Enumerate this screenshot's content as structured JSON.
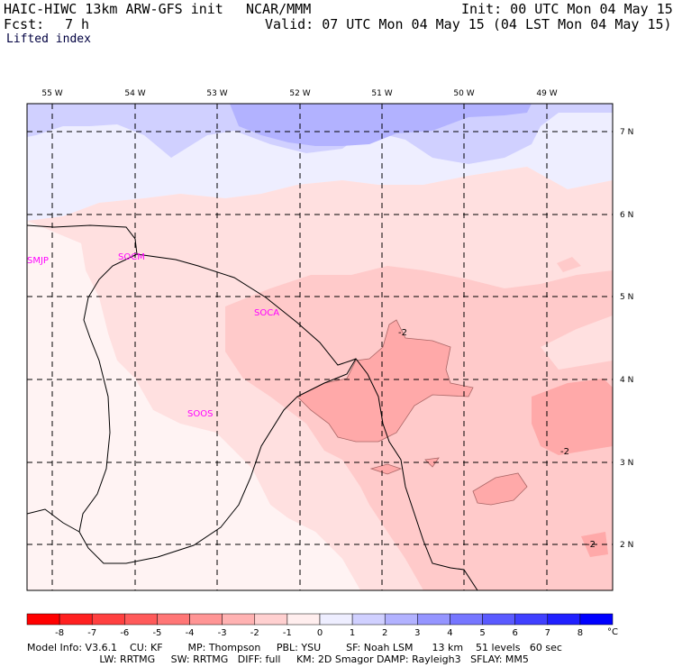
{
  "header": {
    "model_line": "HAIC-HIWC 13km ARW-GFS init",
    "org": "NCAR/MMM",
    "init": "Init: 00 UTC Mon 04 May 15",
    "fcst_label": "Fcst:",
    "fcst_value": "7 h",
    "valid": "Valid: 07 UTC Mon 04 May 15 (04 LST Mon 04 May 15)",
    "field": "Lifted index"
  },
  "map": {
    "lon_labels": [
      "55 W",
      "54 W",
      "53 W",
      "52 W",
      "51 W",
      "50 W",
      "49 W"
    ],
    "lat_labels": [
      "7 N",
      "6 N",
      "5 N",
      "4 N",
      "3 N",
      "2 N"
    ],
    "stations": [
      "SMJP",
      "SOCM",
      "SOCA",
      "SOOS"
    ],
    "contour_labels": [
      "-2",
      "-2",
      "-2"
    ]
  },
  "colorbar": {
    "ticks": [
      "-8",
      "-7",
      "-6",
      "-5",
      "-4",
      "-3",
      "-2",
      "-1",
      "0",
      "1",
      "2",
      "3",
      "4",
      "5",
      "6",
      "7",
      "8"
    ],
    "unit": "°C",
    "colors": [
      "#ff0000",
      "#ff2020",
      "#ff4040",
      "#ff5a5a",
      "#ff7676",
      "#ff9595",
      "#ffb2b2",
      "#ffd0d0",
      "#ffeeee",
      "#eeeeff",
      "#d0d0ff",
      "#b2b2ff",
      "#9595ff",
      "#7676ff",
      "#5a5aff",
      "#4040ff",
      "#2020ff",
      "#0000ff"
    ]
  },
  "footer": {
    "line1": "Model Info: V3.6.1    CU: KF        MP: Thompson     PBL: YSU        SF: Noah LSM      13 km    51 levels   60 sec",
    "line2": "                       LW: RRTMG     SW: RRTMG   DIFF: full     KM: 2D Smagor DAMP: Rayleigh3   SFLAY: MM5"
  },
  "colors": {
    "station": "#ff00ff",
    "border": "#000000",
    "grid": "#000000"
  }
}
